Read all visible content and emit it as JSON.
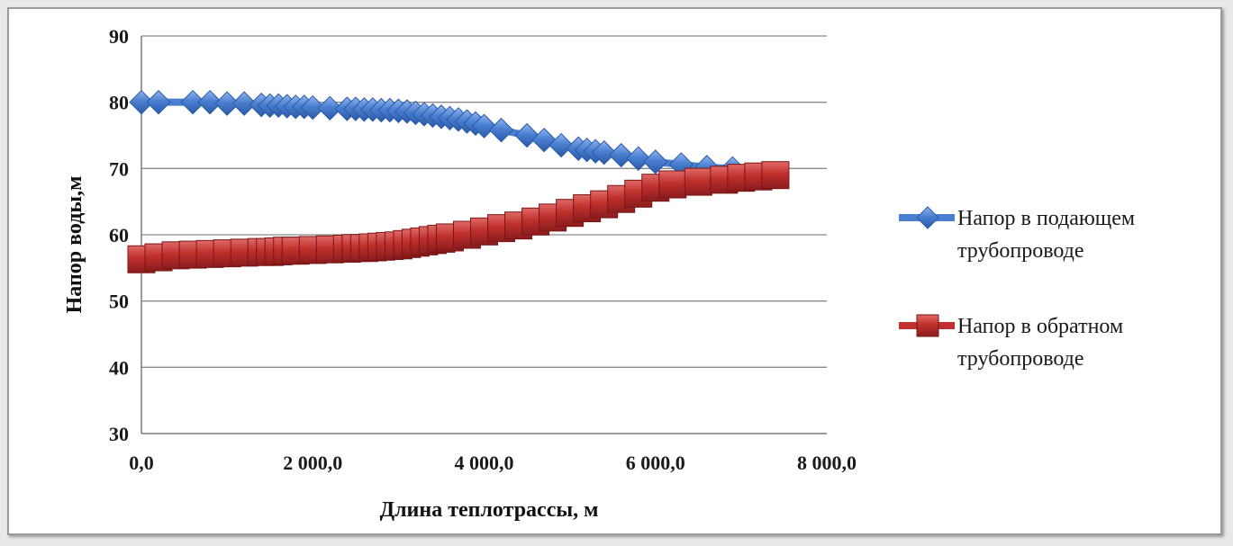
{
  "chart_data": {
    "type": "line",
    "xlabel": "Длина теплотрассы, м",
    "ylabel": "Напор воды,м",
    "xlim": [
      0,
      8000
    ],
    "ylim": [
      30,
      90
    ],
    "x_ticks": [
      0,
      2000,
      4000,
      6000,
      8000
    ],
    "x_tick_labels": [
      "0,0",
      "2 000,0",
      "4 000,0",
      "6 000,0",
      "8 000,0"
    ],
    "y_ticks": [
      30,
      40,
      50,
      60,
      70,
      80,
      90
    ],
    "y_tick_labels": [
      "30",
      "40",
      "50",
      "60",
      "70",
      "80",
      "90"
    ],
    "grid": "horizontal",
    "legend_position": "right",
    "series": [
      {
        "name": "Напор в подающем трубопроводе",
        "marker": "diamond",
        "color": "#4a7fd0",
        "x": [
          0,
          200,
          600,
          800,
          1000,
          1200,
          1400,
          1500,
          1600,
          1700,
          1800,
          1900,
          2000,
          2200,
          2400,
          2500,
          2600,
          2700,
          2800,
          2900,
          3000,
          3100,
          3200,
          3300,
          3400,
          3500,
          3600,
          3700,
          3800,
          3900,
          4000,
          4200,
          4500,
          4700,
          4900,
          5100,
          5200,
          5300,
          5400,
          5600,
          5800,
          6000,
          6300,
          6600,
          6900
        ],
        "y": [
          80,
          80,
          80,
          80,
          79.8,
          79.8,
          79.6,
          79.5,
          79.5,
          79.4,
          79.3,
          79.3,
          79.2,
          79.1,
          79,
          79,
          78.9,
          78.9,
          78.8,
          78.8,
          78.7,
          78.6,
          78.4,
          78.2,
          78,
          77.8,
          77.6,
          77.4,
          77.1,
          76.8,
          76.4,
          75.8,
          75,
          74.3,
          73.5,
          73,
          72.8,
          72.6,
          72.4,
          72,
          71.5,
          71,
          70.6,
          70.2,
          70
        ]
      },
      {
        "name": "Напор в обратном трубопроводе",
        "marker": "square",
        "color": "#c0302e",
        "x": [
          0,
          200,
          400,
          600,
          800,
          1000,
          1200,
          1400,
          1500,
          1600,
          1700,
          1800,
          2000,
          2200,
          2400,
          2500,
          2600,
          2700,
          2800,
          2900,
          3000,
          3100,
          3200,
          3300,
          3400,
          3500,
          3600,
          3800,
          4000,
          4200,
          4400,
          4600,
          4800,
          5000,
          5200,
          5400,
          5600,
          5800,
          6000,
          6200,
          6500,
          6800,
          7000,
          7200,
          7400
        ],
        "y": [
          56.3,
          56.6,
          56.9,
          57,
          57.1,
          57.2,
          57.3,
          57.4,
          57.4,
          57.5,
          57.6,
          57.6,
          57.7,
          57.8,
          57.9,
          58,
          58,
          58.1,
          58.2,
          58.3,
          58.4,
          58.6,
          58.8,
          59,
          59.2,
          59.4,
          59.6,
          60,
          60.5,
          61,
          61.4,
          62,
          62.6,
          63.3,
          64,
          64.6,
          65.4,
          66.2,
          67.1,
          67.6,
          68,
          68.3,
          68.6,
          68.8,
          69
        ]
      }
    ]
  }
}
